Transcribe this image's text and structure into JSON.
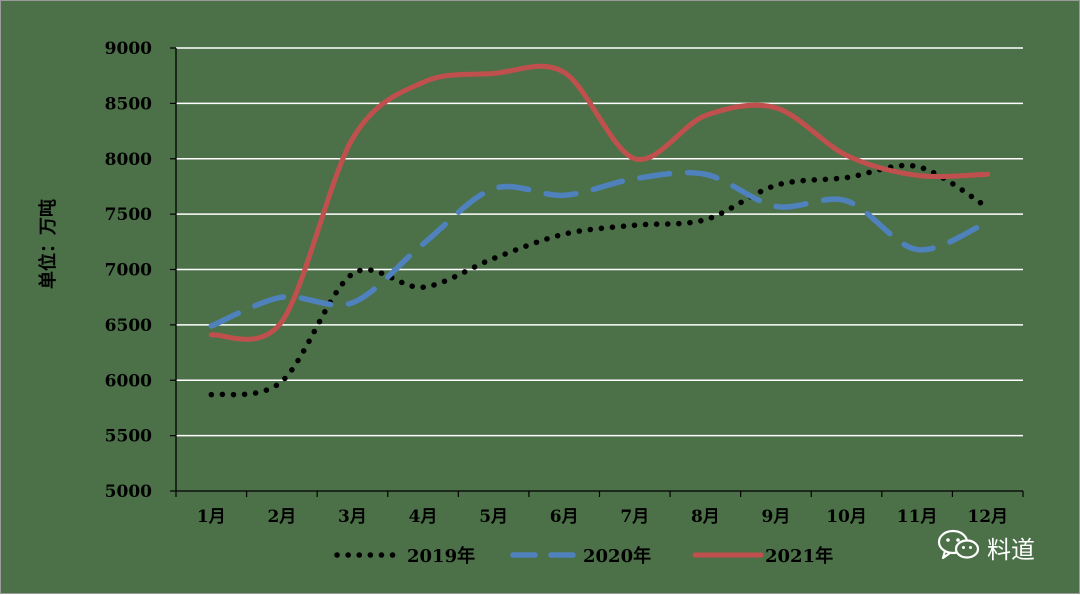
{
  "chart_data": {
    "type": "line",
    "ylabel": "单位：万吨",
    "ylim": [
      5000,
      9000
    ],
    "yticks": [
      5000,
      5500,
      6000,
      6500,
      7000,
      7500,
      8000,
      8500,
      9000
    ],
    "categories": [
      "1月",
      "2月",
      "3月",
      "4月",
      "5月",
      "6月",
      "7月",
      "8月",
      "9月",
      "10月",
      "11月",
      "12月"
    ],
    "grid": true,
    "legend_position": "bottom",
    "series": [
      {
        "name": "2019年",
        "color": "#000000",
        "style": "dotted",
        "values": [
          5870,
          5990,
          6960,
          6840,
          7100,
          7320,
          7400,
          7450,
          7760,
          7830,
          7930,
          7560
        ]
      },
      {
        "name": "2020年",
        "color": "#4f81bd",
        "style": "dashed",
        "values": [
          6490,
          6750,
          6700,
          7230,
          7730,
          7670,
          7820,
          7860,
          7570,
          7620,
          7180,
          7430
        ]
      },
      {
        "name": "2021年",
        "color": "#c0504d",
        "style": "solid",
        "values": [
          6410,
          6530,
          8180,
          8690,
          8770,
          8780,
          8000,
          8390,
          8460,
          8030,
          7850,
          7860
        ]
      }
    ]
  },
  "watermark": {
    "icon": "wechat-icon",
    "text": "料道"
  }
}
